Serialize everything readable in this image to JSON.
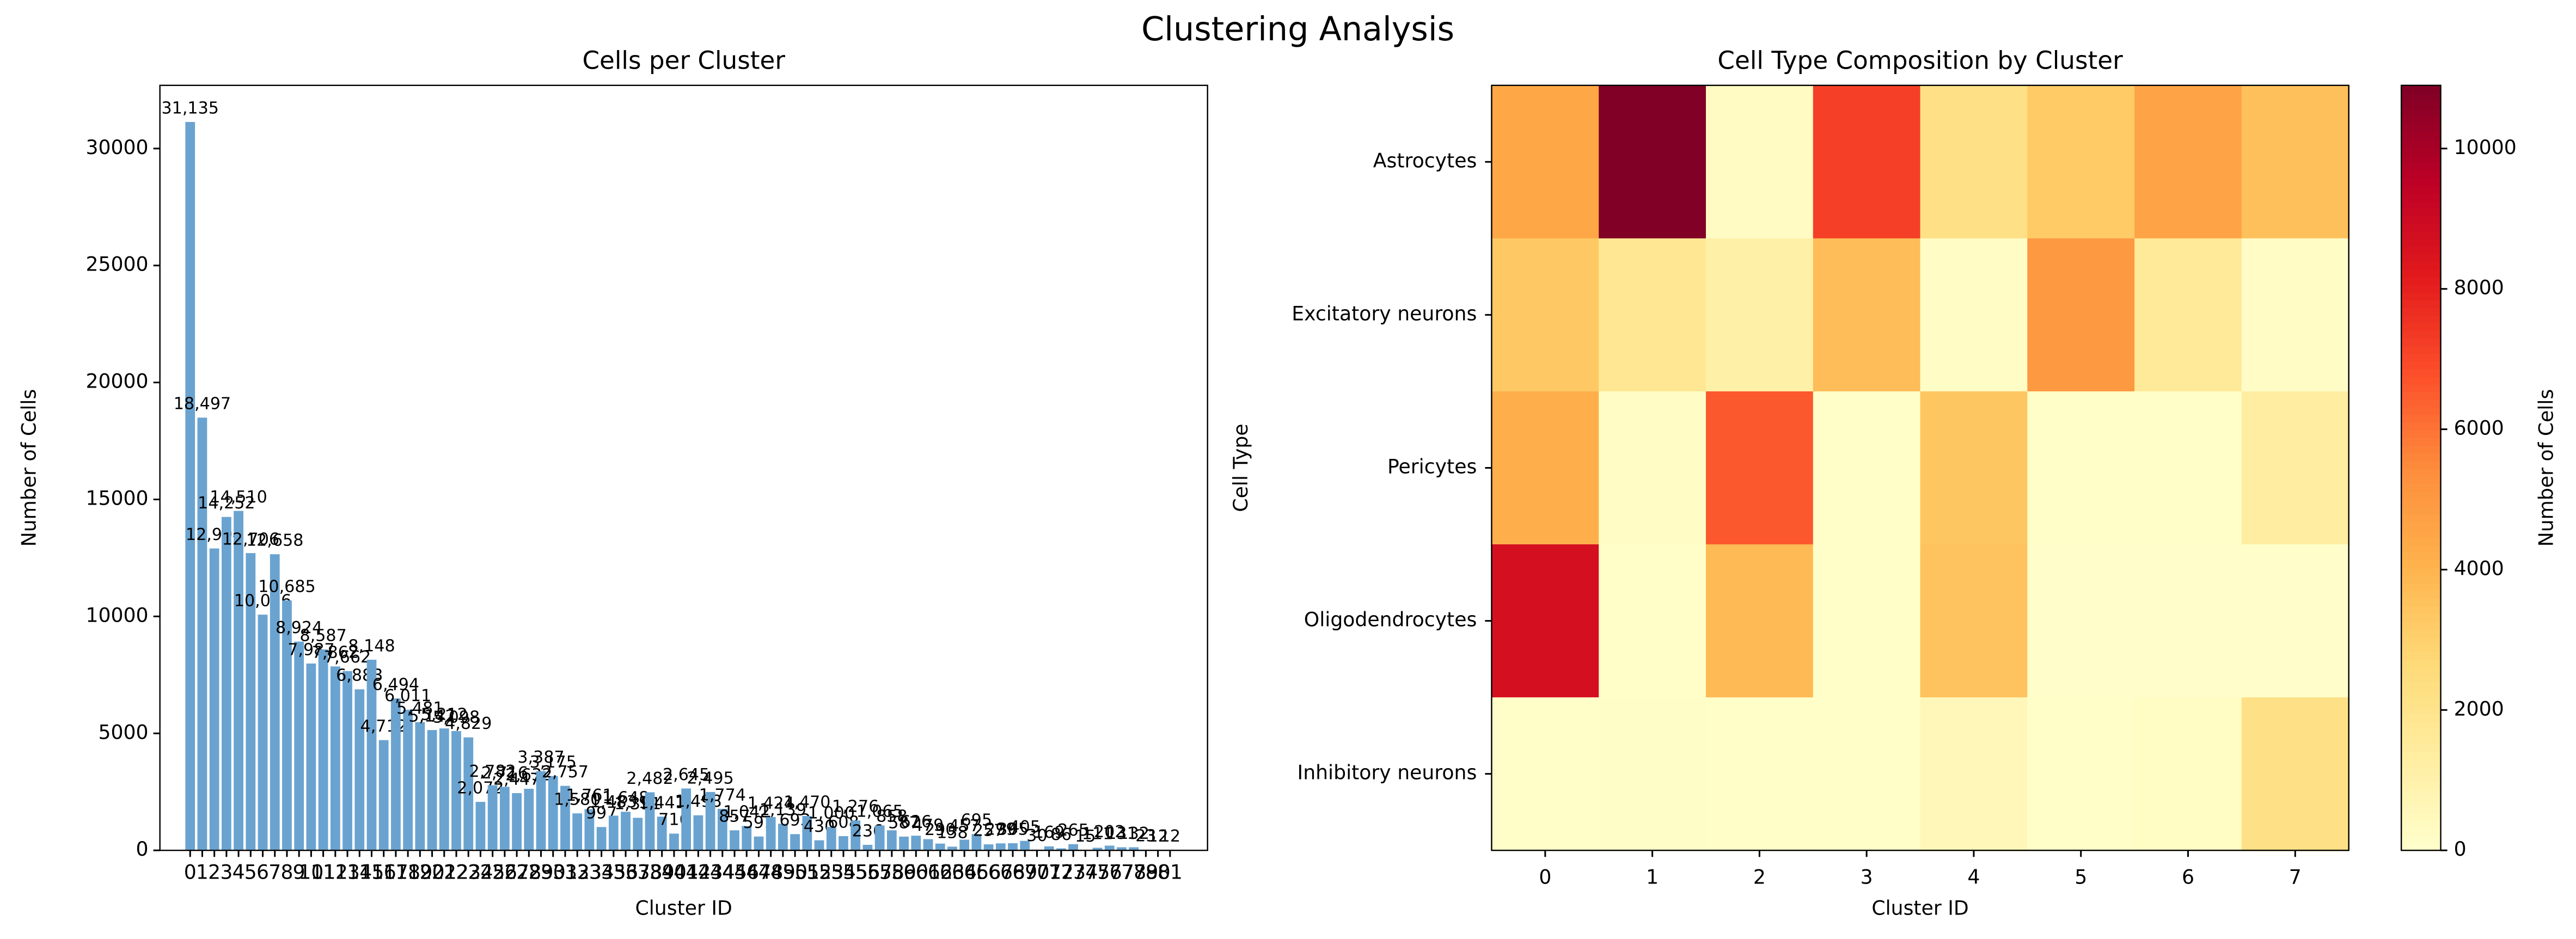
{
  "title": "Clustering Analysis",
  "chart_data": [
    {
      "type": "bar",
      "title": "Cells per Cluster",
      "xlabel": "Cluster ID",
      "ylabel": "Number of Cells",
      "color": "#6aa3d0",
      "categories": [
        "0",
        "1",
        "2",
        "3",
        "4",
        "5",
        "6",
        "7",
        "8",
        "9",
        "10",
        "11",
        "12",
        "13",
        "14",
        "15",
        "16",
        "17",
        "18",
        "19",
        "20",
        "21",
        "22",
        "23",
        "24",
        "25",
        "26",
        "27",
        "28",
        "29",
        "30",
        "31",
        "32",
        "33",
        "34",
        "35",
        "36",
        "37",
        "38",
        "39",
        "40",
        "41",
        "42",
        "43",
        "44",
        "45",
        "46",
        "47",
        "48",
        "49",
        "50",
        "51",
        "52",
        "53",
        "54",
        "55",
        "56",
        "57",
        "58",
        "59",
        "60",
        "61",
        "62",
        "63",
        "64",
        "65",
        "66",
        "67",
        "68",
        "69",
        "70",
        "71",
        "72",
        "73",
        "74",
        "75",
        "76",
        "77",
        "78",
        "79",
        "80",
        "81"
      ],
      "values": [
        31135,
        18497,
        12904,
        14252,
        14510,
        12706,
        10076,
        12658,
        10685,
        8924,
        7987,
        8587,
        7862,
        7662,
        6883,
        8148,
        4712,
        6494,
        6011,
        5481,
        5142,
        5212,
        5098,
        4829,
        2072,
        2782,
        2716,
        2447,
        2632,
        3387,
        3175,
        2757,
        1580,
        1761,
        997,
        1483,
        1648,
        1391,
        2482,
        1441,
        716,
        2645,
        1498,
        2495,
        1774,
        857,
        1042,
        591,
        1424,
        1139,
        693,
        1470,
        430,
        1000,
        608,
        1276,
        236,
        1065,
        858,
        587,
        626,
        479,
        290,
        158,
        457,
        695,
        257,
        299,
        305,
        405,
        30,
        169,
        86,
        265,
        15,
        111,
        202,
        131,
        132,
        23,
        12,
        12
      ],
      "value_labels": [
        "31,135",
        "18,497",
        "12,904",
        "14,252",
        "14,510",
        "12,706",
        "10,076",
        "12,658",
        "10,685",
        "8,924",
        "7,987",
        "8,587",
        "7,862",
        "7,662",
        "6,883",
        "8,148",
        "4,712",
        "6,494",
        "6,011",
        "5,481",
        "5,142",
        "5,212",
        "5,098",
        "4,829",
        "2,072",
        "2,782",
        "2,716",
        "2,447",
        "2,632",
        "3,387",
        "3,175",
        "2,757",
        "1,580",
        "1,761",
        "997",
        "1,483",
        "1,648",
        "1,391",
        "2,482",
        "1,441",
        "716",
        "2,645",
        "1,498",
        "2,495",
        "1,774",
        "857",
        "1,042",
        "591",
        "1,424",
        "1,139",
        "693",
        "1,470",
        "430",
        "1,000",
        "608",
        "1,276",
        "236",
        "1,065",
        "858",
        "587",
        "626",
        "479",
        "290",
        "158",
        "457",
        "695",
        "257",
        "299",
        "305",
        "405",
        "30",
        "169",
        "86",
        "265",
        "15",
        "111",
        "202",
        "131",
        "132",
        "23",
        "12",
        "12"
      ],
      "ylim": [
        0,
        32700
      ],
      "yticks": [
        0,
        5000,
        10000,
        15000,
        20000,
        25000,
        30000
      ]
    },
    {
      "type": "heatmap",
      "title": "Cell Type Composition by Cluster",
      "xlabel": "Cluster ID",
      "ylabel": "Cell Type",
      "categories": [
        "0",
        "1",
        "2",
        "3",
        "4",
        "5",
        "6",
        "7"
      ],
      "rows": [
        "Astrocytes",
        "Excitatory neurons",
        "Pericytes",
        "Oligodendrocytes",
        "Inhibitory neurons"
      ],
      "values": [
        [
          4500,
          10900,
          300,
          7200,
          2200,
          3200,
          4600,
          3600
        ],
        [
          3300,
          1800,
          1100,
          3700,
          200,
          5000,
          1600,
          200
        ],
        [
          4200,
          200,
          6600,
          100,
          3400,
          100,
          100,
          1300
        ],
        [
          8700,
          100,
          3800,
          100,
          3500,
          50,
          50,
          50
        ],
        [
          100,
          150,
          120,
          100,
          600,
          100,
          250,
          2200
        ]
      ],
      "colormap": "YlOrRd",
      "clim": [
        0,
        10900
      ],
      "cticks": [
        0,
        2000,
        4000,
        6000,
        8000,
        10000
      ],
      "colorbar_label": "Number of Cells"
    }
  ]
}
